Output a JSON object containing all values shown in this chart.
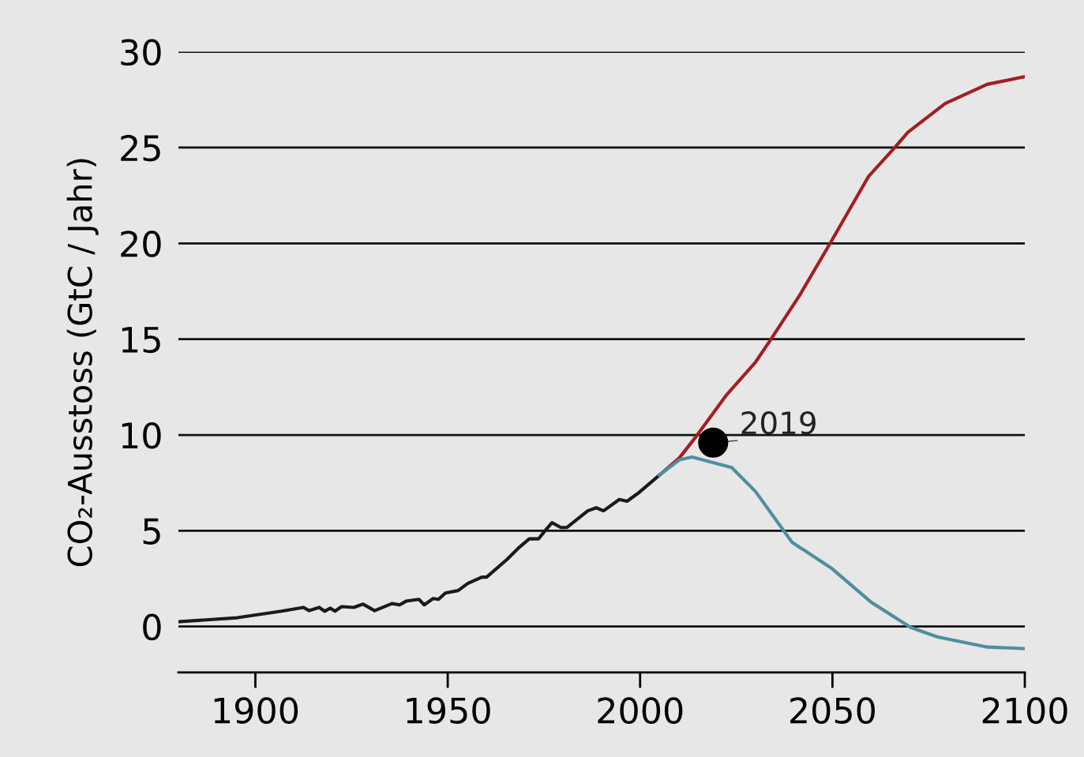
{
  "chart_data": {
    "type": "line",
    "ylabel": "CO₂-Ausstoss (GtC / Jahr)",
    "xlim": [
      1880,
      2100
    ],
    "xticks": [
      1900,
      1950,
      2000,
      2050,
      2100
    ],
    "ylim": [
      -2.4,
      30
    ],
    "yticks": [
      0,
      5,
      10,
      15,
      20,
      25,
      30
    ],
    "grid": "y",
    "marker": "none",
    "line_style": "solid",
    "series": [
      {
        "color": "#1a1a1a",
        "x": [
          1880.1,
          1895.3,
          1906.8,
          1912.5,
          1914,
          1916.6,
          1918,
          1919.5,
          1920.7,
          1922.4,
          1925.6,
          1928,
          1931,
          1935.5,
          1937.5,
          1939.2,
          1942.5,
          1943.9,
          1946.2,
          1947.6,
          1949.4,
          1952.7,
          1955.2,
          1958.9,
          1960.1,
          1965.4,
          1968.3,
          1971.2,
          1973.6,
          1975.3,
          1977.1,
          1979.4,
          1981,
          1986.4,
          1988.6,
          1990.5,
          1994.6,
          1996.6,
          1999.5,
          2005
        ],
        "values": [
          0.25,
          0.46,
          0.8,
          1.0,
          0.83,
          1.0,
          0.8,
          0.96,
          0.8,
          1.04,
          1.0,
          1.17,
          0.83,
          1.2,
          1.13,
          1.33,
          1.42,
          1.13,
          1.46,
          1.42,
          1.75,
          1.88,
          2.25,
          2.58,
          2.58,
          3.5,
          4.08,
          4.58,
          4.58,
          5.0,
          5.42,
          5.17,
          5.17,
          6.04,
          6.2,
          6.04,
          6.63,
          6.54,
          6.96,
          7.9
        ]
      },
      {
        "color": "#a31d22",
        "x": [
          2005,
          2010.2,
          2014.3,
          2022.5,
          2030,
          2033.7,
          2041.5,
          2049.1,
          2059.4,
          2066.2,
          2069.6,
          2079.3,
          2090.2,
          2100
        ],
        "values": [
          7.9,
          8.8,
          9.85,
          12.1,
          13.8,
          14.9,
          17.3,
          19.9,
          23.5,
          25.0,
          25.8,
          27.3,
          28.3,
          28.7
        ]
      },
      {
        "color": "#4f8ea0",
        "x": [
          2005,
          2010.2,
          2013.5,
          2023.8,
          2030,
          2039.5,
          2049.7,
          2060,
          2070.3,
          2077.2,
          2090.2,
          2099.8
        ],
        "values": [
          7.9,
          8.7,
          8.85,
          8.3,
          7.05,
          4.4,
          3.05,
          1.28,
          -0.04,
          -0.54,
          -1.07,
          -1.15
        ]
      },
      {
        "type": "scatter",
        "marker": "circle",
        "color": "#000000",
        "x": [
          2019
        ],
        "values": [
          9.6
        ]
      }
    ],
    "annotations": [
      {
        "text": "2019",
        "x": 2019,
        "y": 9.6
      }
    ]
  }
}
